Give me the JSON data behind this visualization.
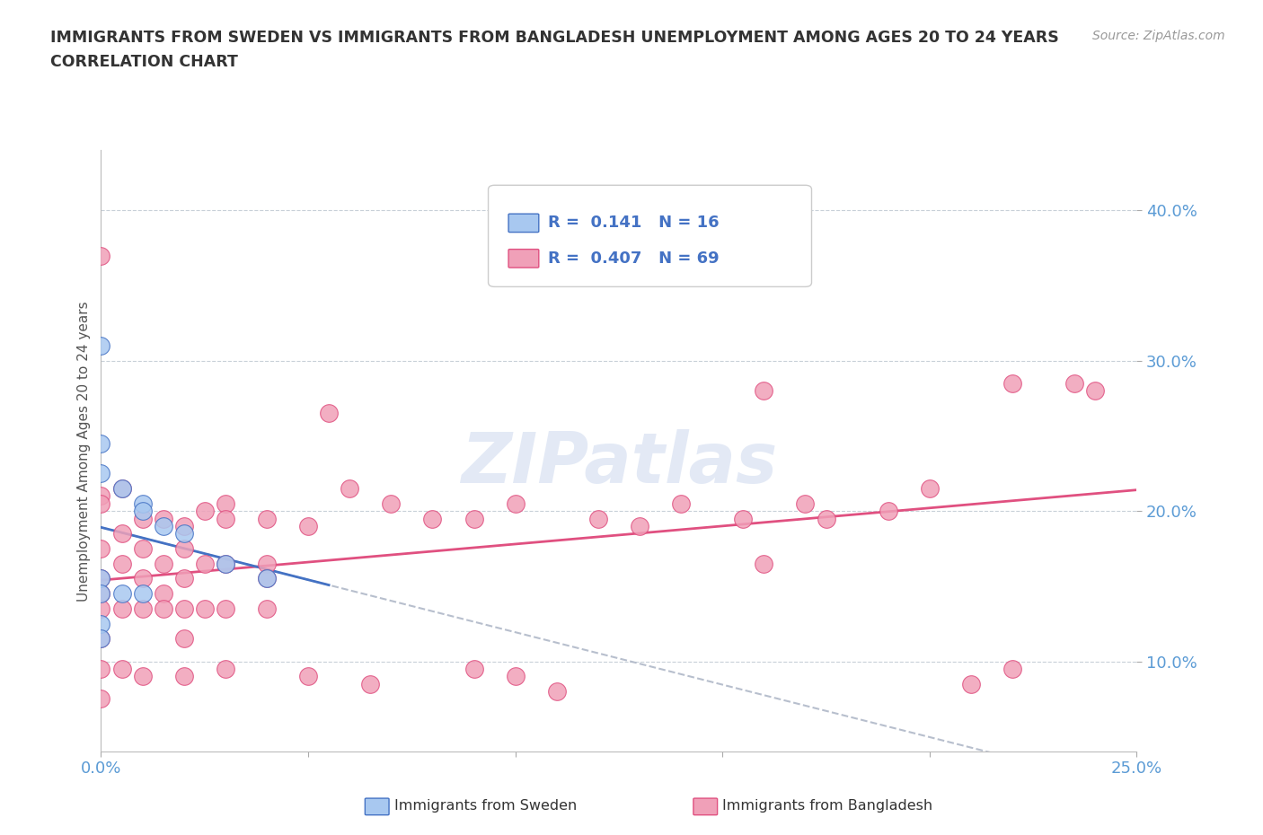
{
  "title_line1": "IMMIGRANTS FROM SWEDEN VS IMMIGRANTS FROM BANGLADESH UNEMPLOYMENT AMONG AGES 20 TO 24 YEARS",
  "title_line2": "CORRELATION CHART",
  "source_text": "Source: ZipAtlas.com",
  "ylabel": "Unemployment Among Ages 20 to 24 years",
  "xlim": [
    0.0,
    0.25
  ],
  "ylim": [
    0.04,
    0.44
  ],
  "yticks": [
    0.1,
    0.2,
    0.3,
    0.4
  ],
  "ytick_labels": [
    "10.0%",
    "20.0%",
    "30.0%",
    "40.0%"
  ],
  "xtick_positions": [
    0.0,
    0.05,
    0.1,
    0.15,
    0.2,
    0.25
  ],
  "xtick_labels": [
    "0.0%",
    "",
    "",
    "",
    "",
    "25.0%"
  ],
  "r_sweden": 0.141,
  "n_sweden": 16,
  "r_bangladesh": 0.407,
  "n_bangladesh": 69,
  "color_sweden": "#a8c8f0",
  "color_bangladesh": "#f0a0b8",
  "color_sweden_line": "#4472c4",
  "color_bangladesh_line": "#e05080",
  "color_gray_dashed": "#b0b8c8",
  "sweden_x": [
    0.0,
    0.0,
    0.0,
    0.005,
    0.01,
    0.01,
    0.015,
    0.02,
    0.03,
    0.04,
    0.0,
    0.0,
    0.005,
    0.01,
    0.0,
    0.0
  ],
  "sweden_y": [
    0.31,
    0.245,
    0.225,
    0.215,
    0.205,
    0.2,
    0.19,
    0.185,
    0.165,
    0.155,
    0.155,
    0.145,
    0.145,
    0.145,
    0.125,
    0.115
  ],
  "bangladesh_x": [
    0.0,
    0.0,
    0.0,
    0.0,
    0.0,
    0.005,
    0.005,
    0.005,
    0.01,
    0.01,
    0.01,
    0.015,
    0.015,
    0.015,
    0.02,
    0.02,
    0.02,
    0.025,
    0.025,
    0.03,
    0.03,
    0.03,
    0.04,
    0.04,
    0.05,
    0.055,
    0.06,
    0.07,
    0.08,
    0.09,
    0.1,
    0.12,
    0.13,
    0.14,
    0.155,
    0.16,
    0.17,
    0.175,
    0.19,
    0.2,
    0.22,
    0.235,
    0.24,
    0.0,
    0.0,
    0.0,
    0.005,
    0.01,
    0.015,
    0.02,
    0.02,
    0.025,
    0.03,
    0.04,
    0.04,
    0.05,
    0.065,
    0.09,
    0.1,
    0.11,
    0.16,
    0.21,
    0.22,
    0.0,
    0.0,
    0.005,
    0.01,
    0.02,
    0.03
  ],
  "bangladesh_y": [
    0.37,
    0.21,
    0.205,
    0.175,
    0.155,
    0.215,
    0.185,
    0.165,
    0.195,
    0.175,
    0.155,
    0.195,
    0.165,
    0.145,
    0.19,
    0.175,
    0.155,
    0.2,
    0.165,
    0.205,
    0.195,
    0.165,
    0.195,
    0.165,
    0.19,
    0.265,
    0.215,
    0.205,
    0.195,
    0.195,
    0.205,
    0.195,
    0.19,
    0.205,
    0.195,
    0.28,
    0.205,
    0.195,
    0.2,
    0.215,
    0.285,
    0.285,
    0.28,
    0.145,
    0.135,
    0.115,
    0.135,
    0.135,
    0.135,
    0.135,
    0.115,
    0.135,
    0.135,
    0.155,
    0.135,
    0.09,
    0.085,
    0.095,
    0.09,
    0.08,
    0.165,
    0.085,
    0.095,
    0.095,
    0.075,
    0.095,
    0.09,
    0.09,
    0.095
  ],
  "watermark_text": "ZIPatlas",
  "background_color": "#ffffff",
  "grid_color": "#c8d0d8",
  "legend_r_sweden": "R =  0.141   N = 16",
  "legend_r_bangladesh": "R =  0.407   N = 69"
}
